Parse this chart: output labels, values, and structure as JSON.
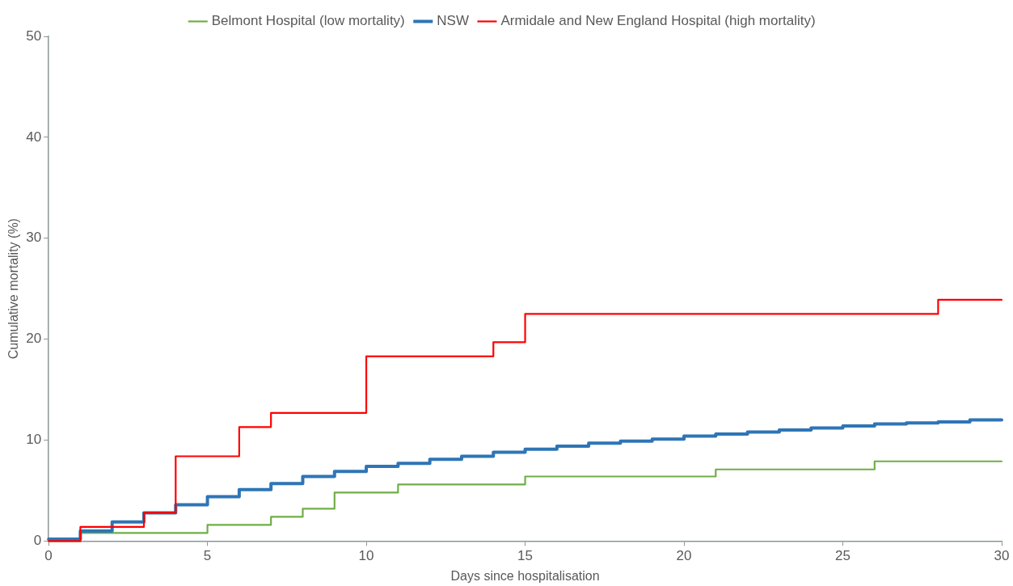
{
  "chart_data": {
    "type": "step",
    "xlabel": "Days since hospitalisation",
    "ylabel": "Cumulative mortality (%)",
    "xlim": [
      0,
      30
    ],
    "xticks": [
      0,
      5,
      10,
      15,
      20,
      25,
      30
    ],
    "ylim": [
      0,
      50
    ],
    "yticks": [
      0,
      10,
      20,
      30,
      40,
      50
    ],
    "grid": false,
    "legend": "top",
    "line_style": "solid",
    "marker": "none",
    "series": [
      {
        "name": "Belmont Hospital (low mortality)",
        "color": "#70ad47",
        "x": [
          0,
          1,
          5,
          7,
          8,
          9,
          11,
          15,
          21,
          26,
          30
        ],
        "values": [
          0,
          0.8,
          1.6,
          2.4,
          3.2,
          4.8,
          5.6,
          6.4,
          7.1,
          7.9,
          7.9
        ]
      },
      {
        "name": "NSW",
        "color": "#2e75b6",
        "x": [
          0,
          1,
          2,
          3,
          4,
          5,
          6,
          7,
          8,
          9,
          10,
          11,
          12,
          13,
          14,
          15,
          16,
          17,
          18,
          19,
          20,
          21,
          22,
          23,
          24,
          25,
          26,
          27,
          28,
          29,
          30
        ],
        "values": [
          0.2,
          1.0,
          1.9,
          2.8,
          3.6,
          4.4,
          5.1,
          5.7,
          6.4,
          6.9,
          7.4,
          7.7,
          8.1,
          8.4,
          8.8,
          9.1,
          9.4,
          9.7,
          9.9,
          10.1,
          10.4,
          10.6,
          10.8,
          11.0,
          11.2,
          11.4,
          11.6,
          11.7,
          11.8,
          12.0,
          12.0
        ]
      },
      {
        "name": "Armidale and New England Hospital (high mortality)",
        "color": "#ff0000",
        "x": [
          0,
          1,
          3,
          4,
          6,
          7,
          10,
          14,
          15,
          28,
          30
        ],
        "values": [
          0,
          1.4,
          2.8,
          8.4,
          11.3,
          12.7,
          18.3,
          19.7,
          22.5,
          23.9,
          23.9
        ]
      }
    ]
  }
}
